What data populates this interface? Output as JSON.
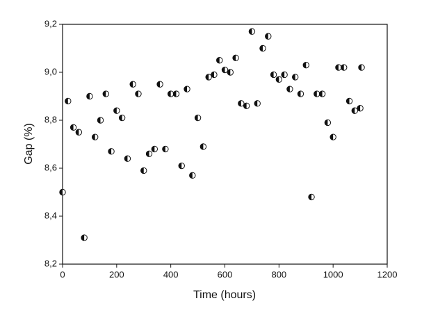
{
  "chart_data": {
    "type": "scatter",
    "x_label": "Time (hours)",
    "y_label": "Gap (%)",
    "xlim": [
      0,
      1200
    ],
    "xticks": [
      0,
      200,
      400,
      600,
      800,
      1000,
      1200
    ],
    "ylim": [
      8.2,
      9.2
    ],
    "yticks": [
      {
        "value": 8.2,
        "label": "8,2"
      },
      {
        "value": 8.4,
        "label": "8,4"
      },
      {
        "value": 8.6,
        "label": "8,6"
      },
      {
        "value": 8.8,
        "label": "8,8"
      },
      {
        "value": 9.0,
        "label": "9,0"
      },
      {
        "value": 9.2,
        "label": "9,2"
      }
    ],
    "color": "#111111",
    "x": [
      0,
      20,
      40,
      60,
      80,
      100,
      120,
      140,
      160,
      180,
      200,
      220,
      240,
      260,
      280,
      300,
      320,
      340,
      360,
      380,
      400,
      420,
      440,
      460,
      480,
      500,
      520,
      540,
      560,
      580,
      600,
      620,
      640,
      660,
      680,
      700,
      720,
      740,
      760,
      780,
      800,
      820,
      840,
      860,
      880,
      900,
      920,
      940,
      960,
      980,
      1000,
      1020,
      1040,
      1060,
      1080,
      1100,
      1105
    ],
    "values": [
      8.5,
      8.88,
      8.77,
      8.75,
      8.31,
      8.9,
      8.73,
      8.8,
      8.91,
      8.67,
      8.84,
      8.81,
      8.64,
      8.95,
      8.91,
      8.59,
      8.66,
      8.68,
      8.95,
      8.68,
      8.91,
      8.91,
      8.61,
      8.93,
      8.57,
      8.81,
      8.69,
      8.98,
      8.99,
      9.05,
      9.01,
      9.0,
      9.06,
      8.87,
      8.86,
      9.17,
      8.87,
      9.1,
      9.15,
      8.99,
      8.97,
      8.99,
      8.93,
      8.98,
      8.91,
      9.03,
      8.48,
      8.91,
      8.91,
      8.79,
      8.73,
      9.02,
      9.02,
      8.88,
      8.84,
      8.85,
      9.02
    ]
  }
}
